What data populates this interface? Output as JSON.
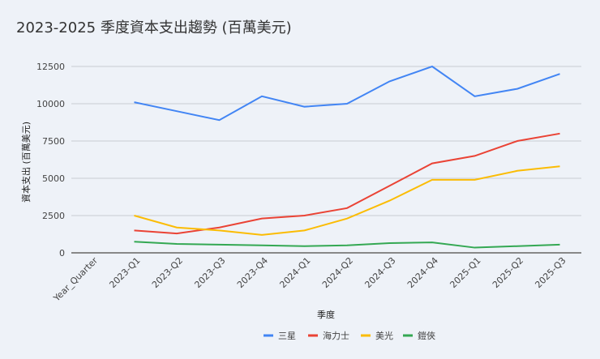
{
  "chart_data": {
    "type": "line",
    "title": "2023-2025 季度資本支出趨勢 (百萬美元)",
    "xlabel": "季度",
    "ylabel": "資本支出 (百萬美元)",
    "categories": [
      "Year_Quarter",
      "2023-Q1",
      "2023-Q2",
      "2023-Q3",
      "2023-Q4",
      "2024-Q1",
      "2024-Q2",
      "2024-Q3",
      "2024-Q4",
      "2025-Q1",
      "2025-Q2",
      "2025-Q3"
    ],
    "ylim": [
      0,
      13500
    ],
    "yticks": [
      0,
      2500,
      5000,
      7500,
      10000,
      12500
    ],
    "grid": true,
    "legend_position": "bottom",
    "series": [
      {
        "name": "三星",
        "color": "#4285f4",
        "values": [
          null,
          10100,
          9500,
          8900,
          10500,
          9800,
          10000,
          11500,
          12500,
          10500,
          11000,
          12000
        ]
      },
      {
        "name": "海力士",
        "color": "#ea4335",
        "values": [
          null,
          1500,
          1300,
          1700,
          2300,
          2500,
          3000,
          4500,
          6000,
          6500,
          7500,
          8000
        ]
      },
      {
        "name": "美光",
        "color": "#fbbc04",
        "values": [
          null,
          2500,
          1700,
          1500,
          1200,
          1500,
          2300,
          3500,
          4900,
          4900,
          5500,
          5800
        ]
      },
      {
        "name": "鎧俠",
        "color": "#34a853",
        "values": [
          null,
          750,
          600,
          550,
          500,
          450,
          500,
          650,
          700,
          350,
          450,
          550
        ]
      }
    ]
  }
}
